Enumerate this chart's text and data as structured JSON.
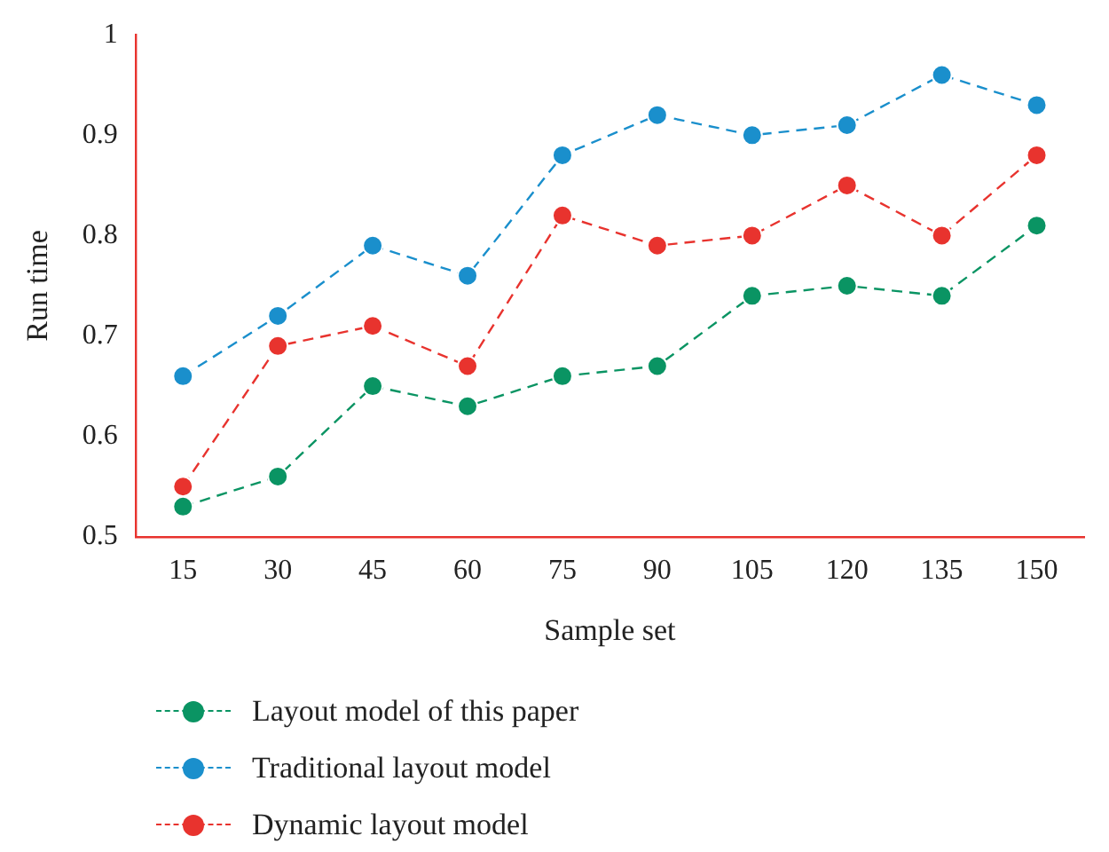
{
  "chart_data": {
    "type": "line",
    "xlabel": "Sample set",
    "ylabel": "Run time",
    "categories": [
      "15",
      "30",
      "45",
      "60",
      "75",
      "90",
      "105",
      "120",
      "135",
      "150"
    ],
    "series": [
      {
        "name": "Layout model of this paper",
        "color": "#0a9463",
        "values": [
          0.53,
          0.56,
          0.65,
          0.63,
          0.66,
          0.67,
          0.74,
          0.75,
          0.74,
          0.81
        ]
      },
      {
        "name": "Traditional layout model",
        "color": "#1a8fcc",
        "values": [
          0.66,
          0.72,
          0.79,
          0.76,
          0.88,
          0.92,
          0.9,
          0.91,
          0.96,
          0.93
        ]
      },
      {
        "name": "Dynamic layout model",
        "color": "#e8332e",
        "values": [
          0.55,
          0.69,
          0.71,
          0.67,
          0.82,
          0.79,
          0.8,
          0.85,
          0.8,
          0.88
        ]
      }
    ],
    "ylim": [
      0.5,
      1
    ],
    "yticks": [
      0.5,
      0.6,
      0.7,
      0.8,
      0.9,
      1
    ],
    "grid": false,
    "legend": "bottom",
    "marker": "circle",
    "line_style": "dashed"
  }
}
